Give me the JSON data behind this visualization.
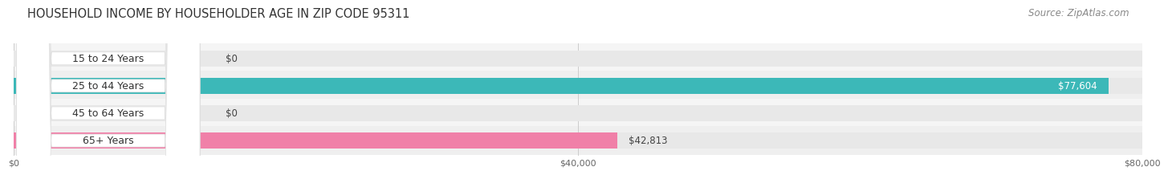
{
  "title": "HOUSEHOLD INCOME BY HOUSEHOLDER AGE IN ZIP CODE 95311",
  "source": "Source: ZipAtlas.com",
  "categories": [
    "15 to 24 Years",
    "25 to 44 Years",
    "45 to 64 Years",
    "65+ Years"
  ],
  "values": [
    0,
    77604,
    0,
    42813
  ],
  "max_value": 80000,
  "bar_colors": [
    "#c9a8d0",
    "#3cb8b8",
    "#a8a8d8",
    "#f080a8"
  ],
  "bg_color": "#e8e8e8",
  "value_labels": [
    "$0",
    "$77,604",
    "$0",
    "$42,813"
  ],
  "x_ticks": [
    0,
    40000,
    80000
  ],
  "x_tick_labels": [
    "$0",
    "$40,000",
    "$80,000"
  ],
  "fig_bg_color": "#ffffff",
  "bar_height": 0.6,
  "title_fontsize": 10.5,
  "source_fontsize": 8.5,
  "label_fontsize": 9,
  "value_fontsize": 8.5,
  "tick_fontsize": 8
}
